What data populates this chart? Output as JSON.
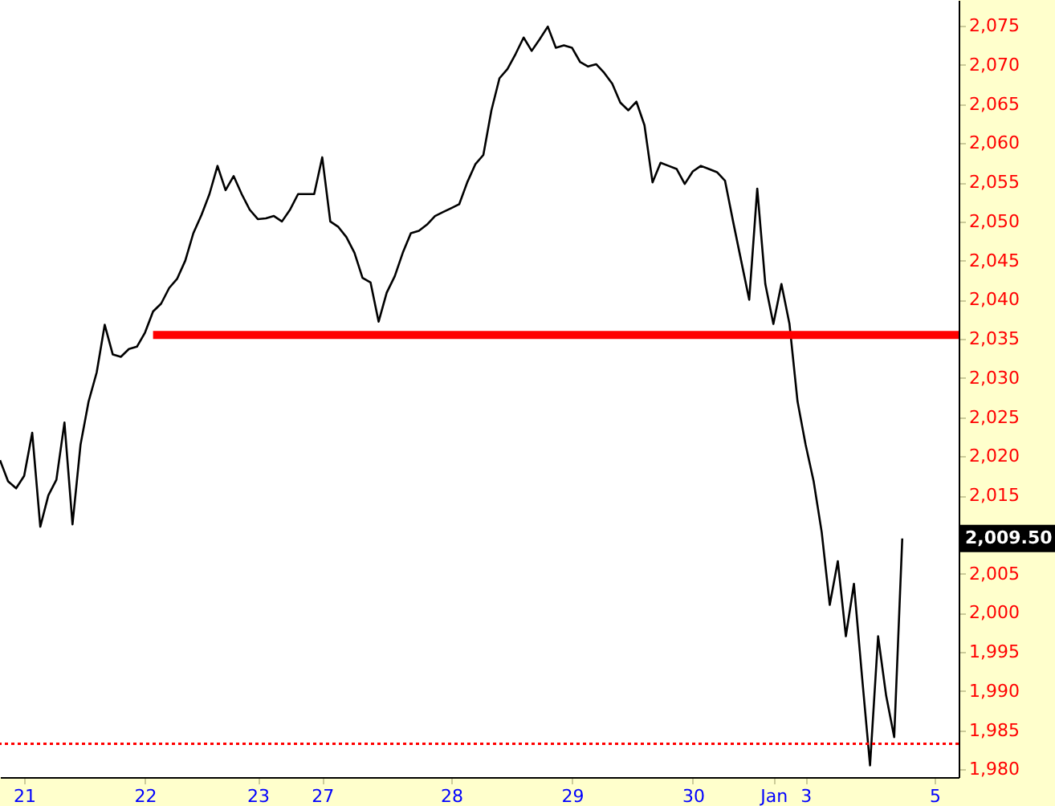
{
  "chart_data": {
    "type": "line",
    "categories": [
      null,
      null,
      null,
      "21",
      null,
      null,
      null,
      null,
      null,
      null,
      null,
      null,
      null,
      null,
      null,
      null,
      null,
      null,
      "22",
      null,
      null,
      null,
      null,
      null,
      null,
      null,
      null,
      null,
      null,
      null,
      null,
      null,
      "23",
      null,
      null,
      null,
      null,
      null,
      null,
      null,
      "27",
      null,
      null,
      null,
      null,
      null,
      null,
      null,
      null,
      null,
      null,
      null,
      null,
      null,
      null,
      null,
      "28",
      null,
      null,
      null,
      null,
      null,
      null,
      null,
      null,
      null,
      null,
      null,
      null,
      null,
      null,
      "29",
      null,
      null,
      null,
      null,
      null,
      null,
      null,
      null,
      null,
      null,
      null,
      null,
      null,
      null,
      "30",
      null,
      null,
      null,
      null,
      null,
      null,
      null,
      null,
      null,
      "Jan",
      null,
      null,
      null,
      "3",
      null,
      null,
      null,
      null,
      null,
      null,
      null,
      null,
      null,
      null,
      null,
      null,
      null,
      null,
      null,
      "5",
      null,
      null,
      null
    ],
    "series": [
      {
        "color": "#000000",
        "values": [
          2019.5,
          2016.8,
          2015.9,
          2017.5,
          2023,
          2011,
          2015,
          2017,
          2024.3,
          2011.3,
          2021.5,
          2027,
          2030.7,
          2036.8,
          2033,
          2032.7,
          2033.7,
          2034,
          2035.8,
          2038.5,
          2039.5,
          2041.5,
          2042.7,
          2045,
          2048.5,
          2050.8,
          2053.5,
          2057.1,
          2054,
          2055.8,
          2053.5,
          2051.5,
          2050.3,
          2050.4,
          2050.7,
          2050,
          2051.5,
          2053.5,
          2053.5,
          2053.5,
          2058.2,
          2050,
          2049.3,
          2048,
          2046,
          2042.8,
          2042.2,
          2037.2,
          2040.9,
          2043,
          2046,
          2048.5,
          2048.8,
          2049.6,
          2050.7,
          2051.2,
          2051.7,
          2052.2,
          2055,
          2057.3,
          2058.5,
          2064.2,
          2068.3,
          2069.5,
          2071.4,
          2073.5,
          2071.8,
          2073.3,
          2074.9,
          2072.2,
          2072.5,
          2072.2,
          2070.4,
          2069.8,
          2070.1,
          2069,
          2067.6,
          2065.2,
          2064.2,
          2065.3,
          2062.3,
          2055,
          2057.5,
          2057.1,
          2056.7,
          2054.8,
          2056.4,
          2057.1,
          2056.7,
          2056.3,
          2055.2,
          2050,
          2045,
          2040,
          2054.2,
          2042,
          2036.9,
          2042,
          2036.9,
          2027,
          2021.5,
          2016.8,
          2010.3,
          2001,
          2006.6,
          1997,
          2003.7,
          1991.9,
          1980.5,
          1997,
          1989.4,
          1984.1,
          2009.5,
          null,
          null,
          null,
          null,
          null,
          null,
          null
        ]
      },
      {
        "color": "#ff0000",
        "values": [
          null,
          null,
          null,
          null,
          null,
          null,
          null,
          null,
          null,
          null,
          null,
          null,
          null,
          null,
          null,
          null,
          null,
          null,
          null,
          2035.5,
          2035.5,
          2035.5,
          2035.5,
          2035.5,
          2035.5,
          2035.5,
          2035.5,
          2035.5,
          2035.5,
          2035.5,
          2035.5,
          2035.5,
          2035.5,
          2035.5,
          2035.5,
          2035.5,
          2035.5,
          2035.5,
          2035.5,
          2035.5,
          2035.5,
          2035.5,
          2035.5,
          2035.5,
          2035.5,
          2035.5,
          2035.5,
          2035.5,
          2035.5,
          2035.5,
          2035.5,
          2035.5,
          2035.5,
          2035.5,
          2035.5,
          2035.5,
          2035.5,
          2035.5,
          2035.5,
          2035.5,
          2035.5,
          2035.5,
          2035.5,
          2035.5,
          2035.5,
          2035.5,
          2035.5,
          2035.5,
          2035.5,
          2035.5,
          2035.5,
          2035.5,
          2035.5,
          2035.5,
          2035.5,
          2035.5,
          2035.5,
          2035.5,
          2035.5,
          2035.5,
          2035.5,
          2035.5,
          2035.5,
          2035.5,
          2035.5,
          2035.5,
          2035.5,
          2035.5,
          2035.5,
          2035.5,
          2035.5,
          2035.5,
          2035.5,
          2035.5,
          2035.5,
          2035.5,
          2035.5,
          2035.5,
          2035.5,
          2035.5,
          2035.5,
          2035.5,
          2035.5,
          2035.5,
          2035.5,
          2035.5,
          2035.5,
          2035.5,
          2035.5,
          2035.5,
          2035.5,
          2035.5,
          2035.5,
          2035.5,
          2035.5,
          2035.5,
          2035.5,
          2035.5,
          2035.5,
          2035.5
        ]
      }
    ],
    "ylim": [
      1979,
      2078.3
    ],
    "yticks": [
      {
        "value": 1980,
        "label": "1,980"
      },
      {
        "value": 1985,
        "label": "1,985"
      },
      {
        "value": 1990,
        "label": "1,990"
      },
      {
        "value": 1995,
        "label": "1,995"
      },
      {
        "value": 2000,
        "label": "2,000"
      },
      {
        "value": 2005,
        "label": "2,005"
      },
      {
        "value": 2010,
        "label": null
      },
      {
        "value": 2015,
        "label": "2,015"
      },
      {
        "value": 2020,
        "label": "2,020"
      },
      {
        "value": 2025,
        "label": "2,025"
      },
      {
        "value": 2030,
        "label": "2,030"
      },
      {
        "value": 2035,
        "label": "2,035"
      },
      {
        "value": 2040,
        "label": "2,040"
      },
      {
        "value": 2045,
        "label": "2,045"
      },
      {
        "value": 2050,
        "label": "2,050"
      },
      {
        "value": 2055,
        "label": "2,055"
      },
      {
        "value": 2060,
        "label": "2,060"
      },
      {
        "value": 2065,
        "label": "2,065"
      },
      {
        "value": 2070,
        "label": "2,070"
      },
      {
        "value": 2075,
        "label": "2,075"
      }
    ],
    "ref_lines": [
      {
        "axis": "y",
        "value": 1983.25,
        "color": "#ff0000",
        "line_style": "dotted"
      }
    ],
    "annotations": [
      "2,009.50"
    ],
    "grid": false
  }
}
